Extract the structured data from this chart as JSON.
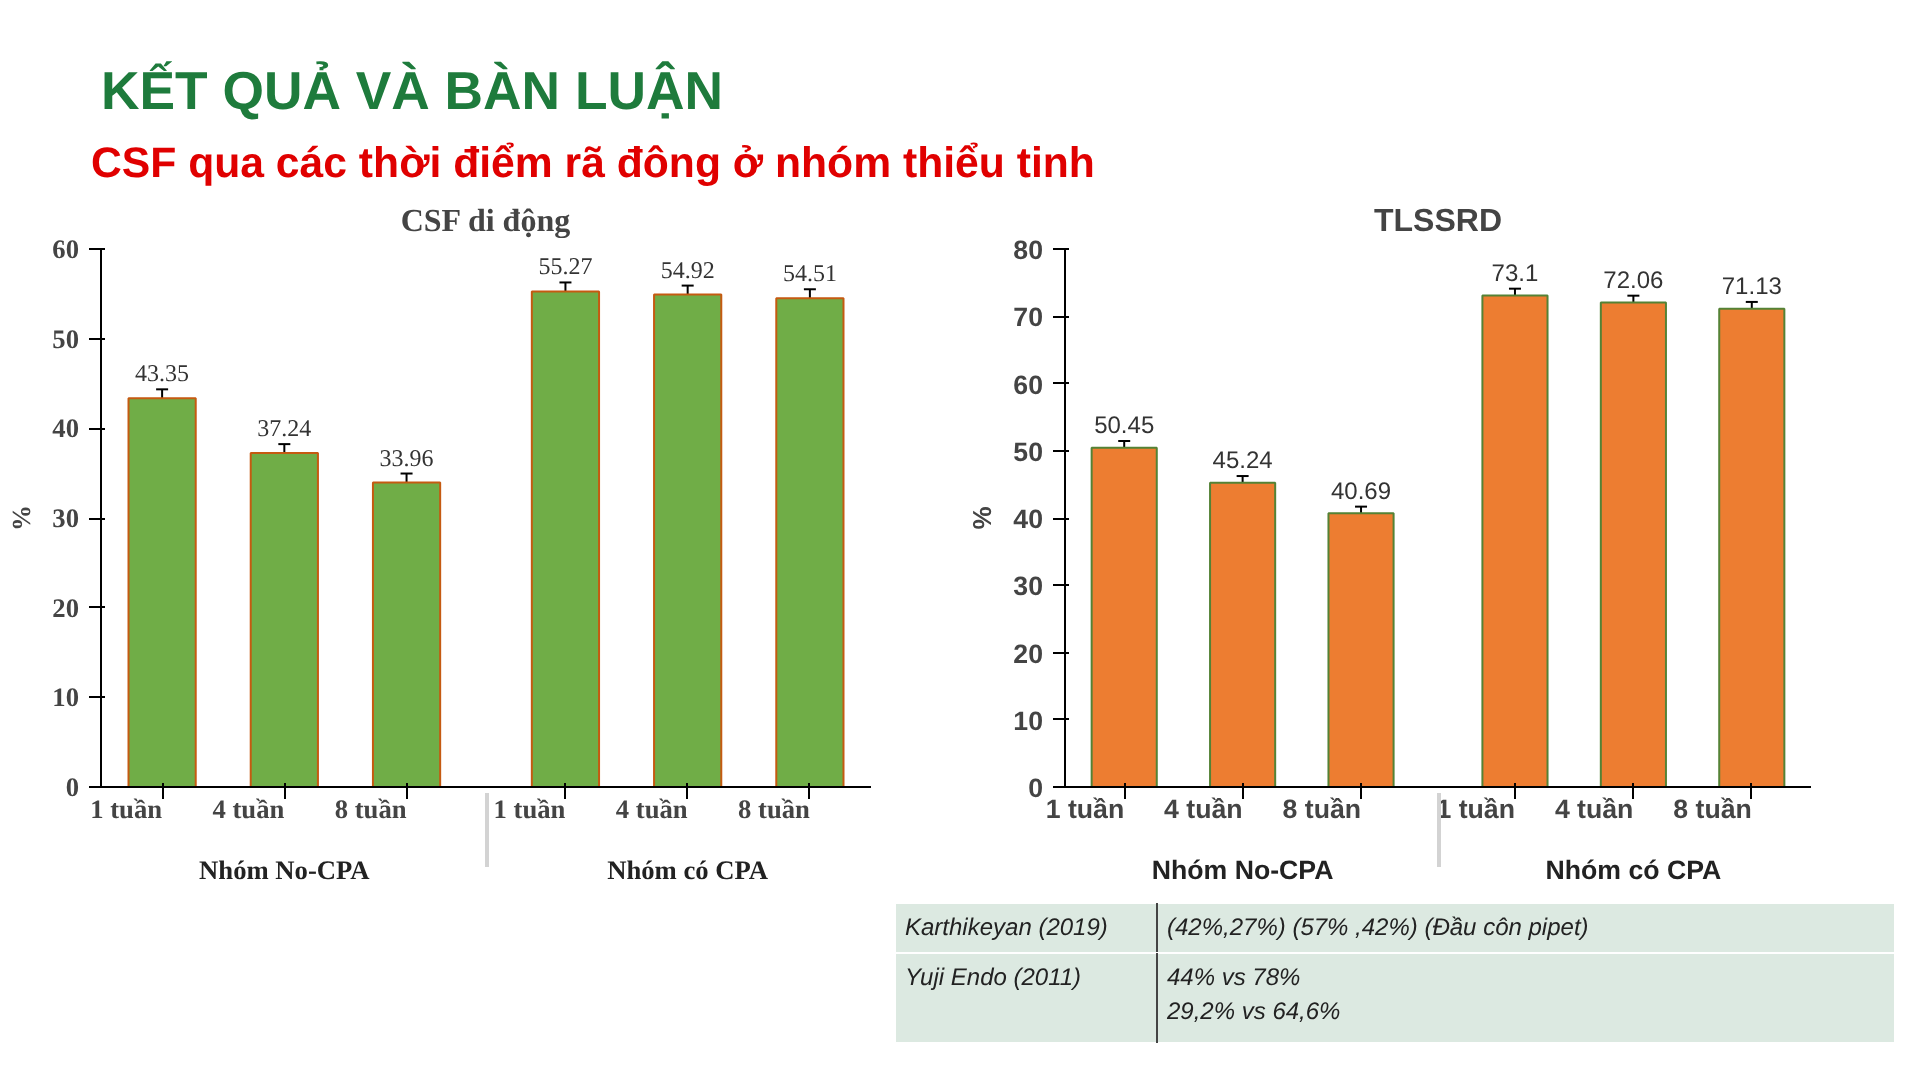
{
  "chart_data": [
    {
      "type": "other",
      "title": "KẾT QUẢ VÀ BÀN LUẬN",
      "subtitle": "CSF qua các thời điểm rã đông ở nhóm thiểu tinh"
    },
    {
      "type": "bar",
      "title": "CSF di động",
      "ylabel": "%",
      "categories": [
        "1 tuần",
        "4 tuần",
        "8 tuần",
        "1 tuần",
        "4 tuần",
        "8 tuần"
      ],
      "annotations": [
        "Nhóm No-CPA",
        "Nhóm có CPA"
      ],
      "values": [
        43.35,
        37.24,
        33.96,
        55.27,
        54.92,
        54.51
      ],
      "errors": [
        1,
        1,
        1,
        1,
        1,
        1
      ],
      "color": "#70ad47",
      "ylim": [
        0,
        60
      ],
      "yticks": [
        0,
        10,
        20,
        30,
        40,
        50,
        60
      ],
      "grid": false,
      "data_labels": true
    },
    {
      "type": "bar",
      "title": "TLSSRD",
      "ylabel": "%",
      "categories": [
        "1 tuần",
        "4 tuần",
        "8 tuần",
        "1 tuần",
        "4 tuần",
        "8 tuần"
      ],
      "annotations": [
        "Nhóm No-CPA",
        "Nhóm có CPA"
      ],
      "values": [
        50.45,
        45.24,
        40.69,
        73.1,
        72.06,
        71.13
      ],
      "errors": [
        1,
        1,
        1,
        1,
        1,
        1
      ],
      "color": "#ed7d31",
      "ylim": [
        0,
        80
      ],
      "yticks": [
        0,
        10,
        20,
        30,
        40,
        50,
        60,
        70,
        80
      ],
      "grid": false,
      "data_labels": true
    },
    {
      "type": "other",
      "annotations": [
        "Karthikeyan (2019)",
        "(42%,27%)  (57% ,42%)        (Đầu  côn pipet)",
        "Yuji Endo (2011)",
        "44% vs 78%\n29,2% vs 64,6%"
      ]
    }
  ]
}
